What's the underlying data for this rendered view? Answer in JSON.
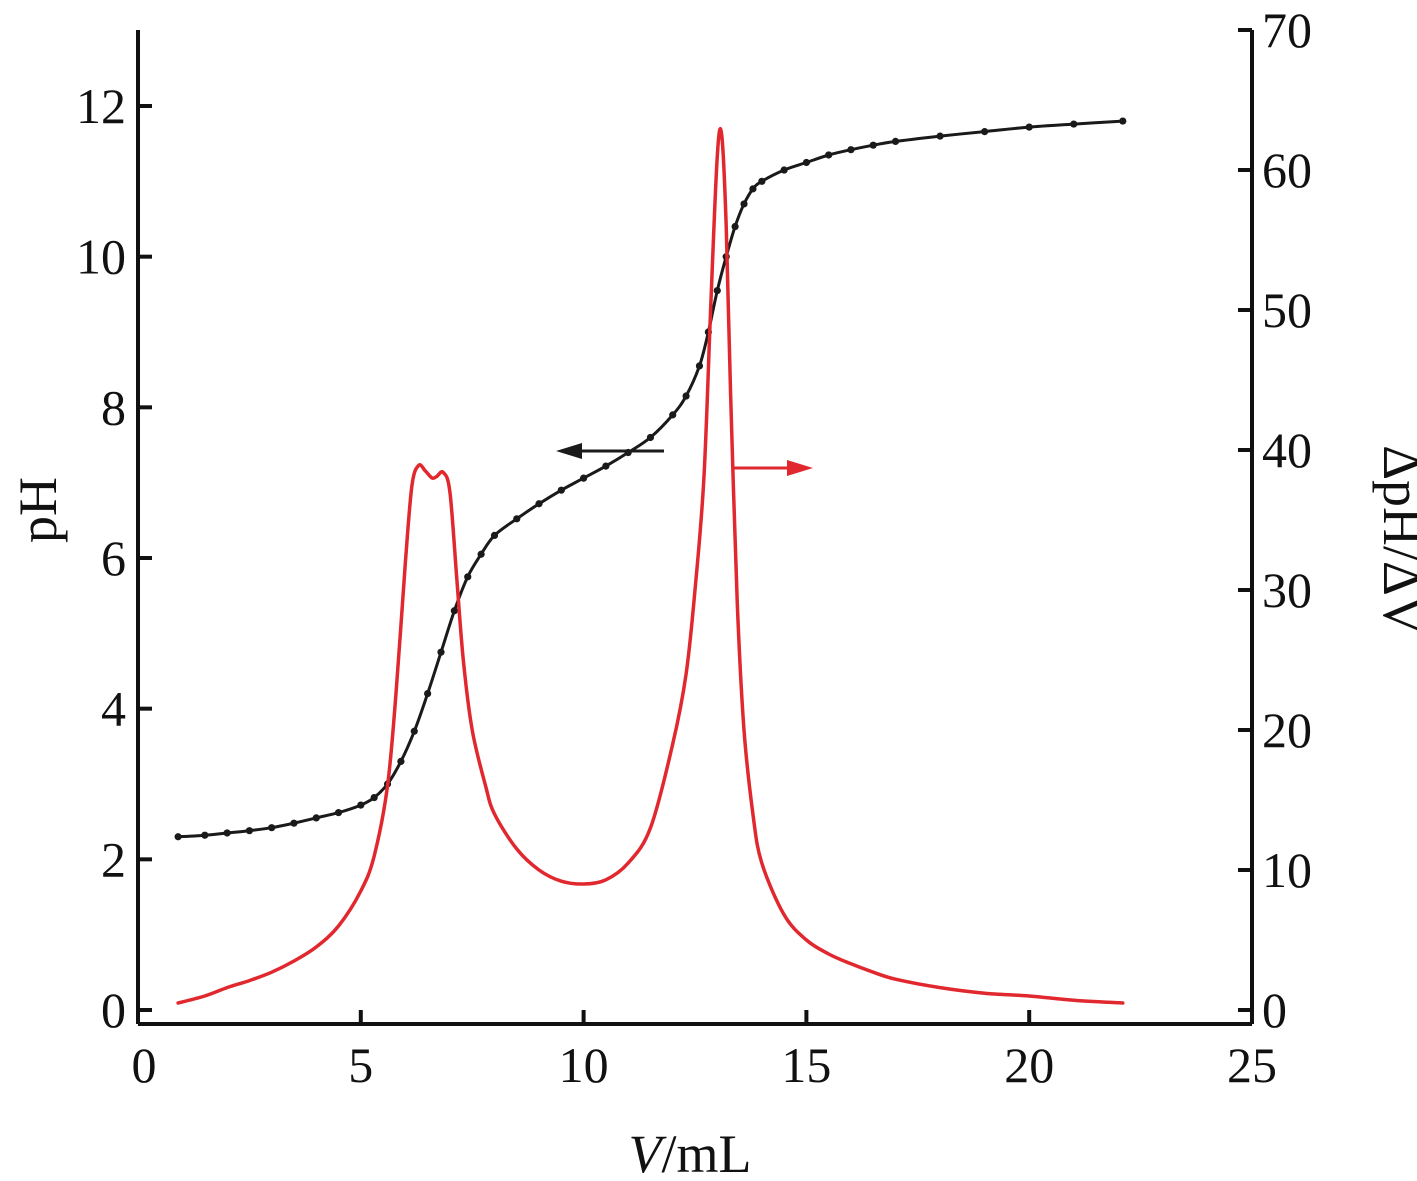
{
  "chart_data": {
    "type": "line",
    "title": "",
    "xlabel": "V/mL",
    "xlabel_italic_part": "V",
    "xlabel_rest": "/mL",
    "ylabel_left": "pH",
    "ylabel_right": "ΔpH/ΔV",
    "xlim": [
      0,
      25
    ],
    "ylim_left": [
      0,
      13
    ],
    "ylim_right": [
      0,
      70
    ],
    "x_ticks": [
      0,
      5,
      10,
      15,
      20,
      25
    ],
    "y_left_ticks": [
      0,
      2,
      4,
      6,
      8,
      10,
      12
    ],
    "y_right_ticks": [
      0,
      10,
      20,
      30,
      40,
      50,
      60,
      70
    ],
    "grid": false,
    "legend": "none",
    "series": [
      {
        "axis": "left",
        "color": "#1a1a1a",
        "marker": "dot",
        "x": [
          0.9,
          1.5,
          2.0,
          2.5,
          3.0,
          3.5,
          4.0,
          4.5,
          5.0,
          5.3,
          5.6,
          5.9,
          6.2,
          6.5,
          6.8,
          7.1,
          7.4,
          7.7,
          8.0,
          8.5,
          9.0,
          9.5,
          10.0,
          10.5,
          11.0,
          11.5,
          12.0,
          12.3,
          12.6,
          12.8,
          13.0,
          13.2,
          13.4,
          13.6,
          13.8,
          14.0,
          14.5,
          15.0,
          15.5,
          16.0,
          16.5,
          17.0,
          18.0,
          19.0,
          20.0,
          21.0,
          22.1
        ],
        "y": [
          2.3,
          2.32,
          2.35,
          2.38,
          2.42,
          2.48,
          2.55,
          2.62,
          2.72,
          2.82,
          3.0,
          3.3,
          3.7,
          4.2,
          4.75,
          5.3,
          5.75,
          6.05,
          6.3,
          6.52,
          6.72,
          6.9,
          7.06,
          7.22,
          7.4,
          7.6,
          7.9,
          8.15,
          8.55,
          9.0,
          9.55,
          10.0,
          10.4,
          10.7,
          10.9,
          11.0,
          11.15,
          11.25,
          11.35,
          11.42,
          11.48,
          11.53,
          11.6,
          11.66,
          11.72,
          11.76,
          11.8
        ]
      },
      {
        "axis": "right",
        "color": "#e0282e",
        "marker": "none",
        "x": [
          0.9,
          1.5,
          2.0,
          2.5,
          3.0,
          3.5,
          4.0,
          4.5,
          5.0,
          5.3,
          5.6,
          5.8,
          6.0,
          6.15,
          6.3,
          6.45,
          6.6,
          6.7,
          6.85,
          7.0,
          7.15,
          7.3,
          7.5,
          7.8,
          8.0,
          8.5,
          9.0,
          9.5,
          10.0,
          10.5,
          11.0,
          11.5,
          12.0,
          12.3,
          12.5,
          12.7,
          12.85,
          13.0,
          13.1,
          13.2,
          13.3,
          13.45,
          13.6,
          13.8,
          14.0,
          14.5,
          15.0,
          15.5,
          16.0,
          16.5,
          17.0,
          18.0,
          19.0,
          20.0,
          21.0,
          22.1
        ],
        "y": [
          0.5,
          1.0,
          1.6,
          2.1,
          2.7,
          3.5,
          4.5,
          6.0,
          8.5,
          11.0,
          16.0,
          23.0,
          32.0,
          37.5,
          38.9,
          38.5,
          38.0,
          38.1,
          38.4,
          37.0,
          31.0,
          25.0,
          20.0,
          16.0,
          14.0,
          11.5,
          10.0,
          9.2,
          9.0,
          9.3,
          10.5,
          13.0,
          19.0,
          24.0,
          30.0,
          38.0,
          50.0,
          61.0,
          62.5,
          56.0,
          44.0,
          29.0,
          20.0,
          14.0,
          10.5,
          6.8,
          5.0,
          4.0,
          3.3,
          2.7,
          2.2,
          1.6,
          1.2,
          1.0,
          0.7,
          0.5
        ]
      }
    ],
    "annotations": [
      {
        "type": "arrow",
        "color": "#1a1a1a",
        "direction": "left",
        "points_to": "left axis (pH)"
      },
      {
        "type": "arrow",
        "color": "#e0282e",
        "direction": "right",
        "points_to": "right axis (ΔpH/ΔV)"
      }
    ]
  }
}
